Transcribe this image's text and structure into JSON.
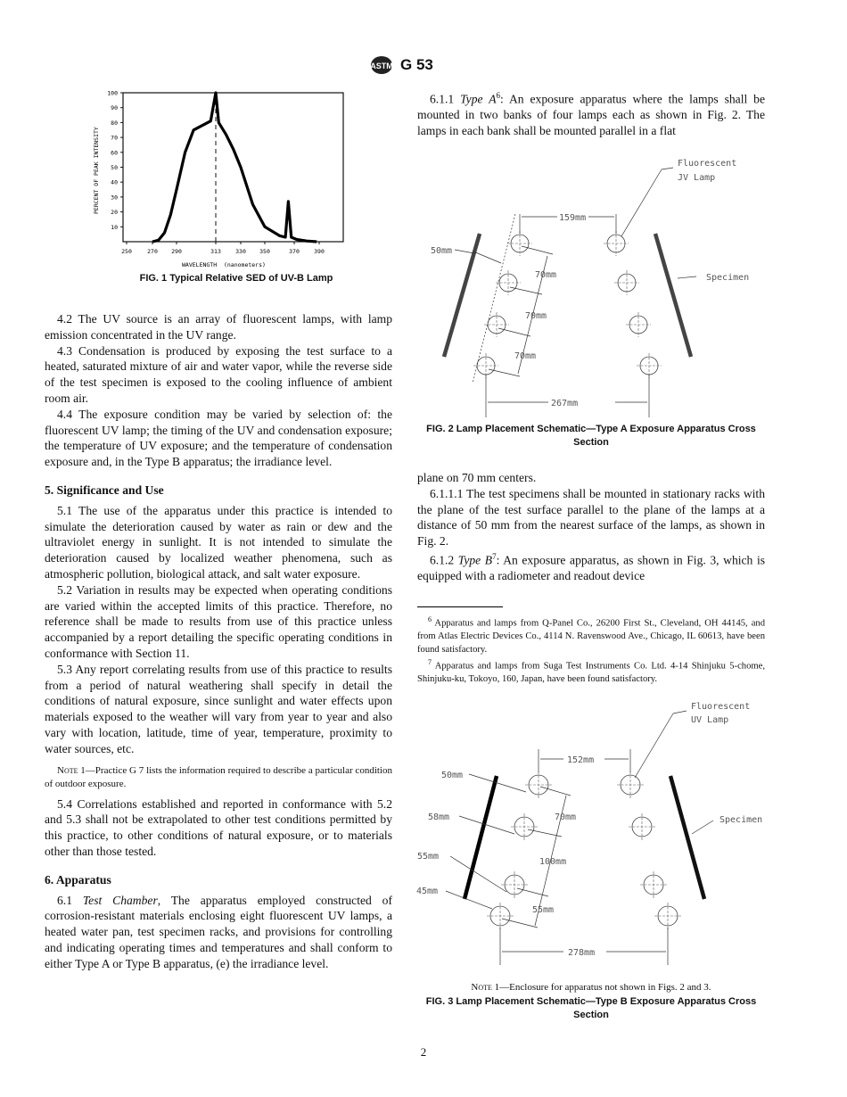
{
  "header": {
    "logo_text": "ASTM",
    "designation": "G 53"
  },
  "page_number": "2",
  "left": {
    "p42": "4.2 The UV source is an array of fluorescent lamps, with lamp emission concentrated in the UV range.",
    "p43": "4.3 Condensation is produced by exposing the test surface to a heated, saturated mixture of air and water vapor, while the reverse side of the test specimen is exposed to the cooling influence of ambient room air.",
    "p44": "4.4 The exposure condition may be varied by selection of: the fluorescent UV lamp; the timing of the UV and condensation exposure; the temperature of UV exposure; and the temperature of condensation exposure and, in the Type B apparatus; the irradiance level.",
    "h5": "5. Significance and Use",
    "p51": "5.1 The use of the apparatus under this practice is intended to simulate the deterioration caused by water as rain or dew and the ultraviolet energy in sunlight. It is not intended to simulate the deterioration caused by localized weather phenomena, such as atmospheric pollution, biological attack, and salt water exposure.",
    "p52": "5.2 Variation in results may be expected when operating conditions are varied within the accepted limits of this practice. Therefore, no reference shall be made to results from use of this practice unless accompanied by a report detailing the specific operating conditions in conformance with Section 11.",
    "p53": "5.3 Any report correlating results from use of this practice to results from a period of natural weathering shall specify in detail the conditions of natural exposure, since sunlight and water effects upon materials exposed to the weather will vary from year to year and also vary with location, latitude, time of year, temperature, proximity to water sources, etc.",
    "note1_label": "Note",
    "note1_text": " 1—Practice G 7 lists the information required to describe a particular condition of outdoor exposure.",
    "p54": "5.4 Correlations established and reported in conformance with 5.2 and 5.3 shall not be extrapolated to other test conditions permitted by this practice, to other conditions of natural exposure, or to materials other than those tested.",
    "h6": "6. Apparatus",
    "p61_num": "6.1 ",
    "p61_title": "Test Chamber",
    "p61_text": ", The apparatus employed constructed of corrosion-resistant materials enclosing eight fluorescent UV lamps, a heated water pan, test specimen racks, and provisions for controlling and indicating operating times and temperatures and shall conform to either Type A or Type B apparatus, (e) the irradiance level."
  },
  "right": {
    "p611_num": "6.1.1 ",
    "p611_title": "Type A",
    "p611_sup": "6",
    "p611_text": ": An exposure apparatus where the lamps shall be mounted in two banks of four lamps each as shown in Fig. 2. The lamps in each bank shall be mounted parallel in a flat",
    "p611_cont": "plane on 70 mm centers.",
    "p6111": "6.1.1.1 The test specimens shall be mounted in stationary racks with the plane of the test surface parallel to the plane of the lamps at a distance of 50 mm from the nearest surface of the lamps, as shown in Fig. 2.",
    "p612_num": "6.1.2 ",
    "p612_title": "Type B",
    "p612_sup": "7",
    "p612_text": ": An exposure apparatus, as shown in Fig. 3, which is equipped with a radiometer and readout device",
    "fn6_sup": "6",
    "fn6": " Apparatus and lamps from Q-Panel Co., 26200 First St., Cleveland, OH 44145, and from Atlas Electric Devices Co., 4114 N. Ravenswood Ave., Chicago, IL 60613, have been found satisfactory.",
    "fn7_sup": "7",
    "fn7": " Apparatus and lamps from Suga Test Instruments Co. Ltd. 4-14 Shinjuku 5-chome, Shinjuku-ku, Tokoyo, 160, Japan, have been found satisfactory."
  },
  "fig1": {
    "caption": "FIG. 1 Typical Relative SED of UV-B Lamp",
    "chart_data": {
      "type": "line",
      "xlabel": "WAVELENGTH  (nanometers)",
      "ylabel": "PERCENT OF PEAK INTENSITY",
      "x_ticks": [
        250,
        270,
        290,
        313,
        330,
        350,
        370,
        390
      ],
      "y_ticks": [
        10,
        20,
        30,
        40,
        50,
        60,
        70,
        80,
        90,
        100
      ],
      "ylim": [
        0,
        100
      ],
      "grid": false,
      "reference_line_x": 313,
      "series": [
        {
          "x": [
            270,
            275,
            280,
            285,
            290,
            295,
            300,
            310,
            313,
            315,
            320,
            325,
            330,
            340,
            350,
            360,
            364,
            366,
            368,
            372,
            380,
            388
          ],
          "y": [
            0,
            1,
            6,
            18,
            35,
            60,
            75,
            81,
            100,
            80,
            72,
            62,
            50,
            25,
            10,
            4,
            3,
            27,
            3,
            1.5,
            0.5,
            0
          ]
        }
      ]
    }
  },
  "fig2": {
    "caption": "FIG. 2 Lamp Placement Schematic—Type A Exposure Apparatus Cross Section",
    "labels": {
      "lamp1": "Fluorescent",
      "lamp2": "JV Lamp",
      "spacing": "159mm",
      "dist": "50mm",
      "c1": "70mm",
      "c2": "70mm",
      "c3": "70mm",
      "specimen": "Specimen",
      "width": "267mm"
    }
  },
  "fig3": {
    "note_label": "Note",
    "note_text": " 1—Enclosure for apparatus not shown in Figs. 2 and 3.",
    "caption": "FIG. 3 Lamp Placement Schematic—Type B Exposure Apparatus Cross Section",
    "labels": {
      "lamp1": "Fluorescent",
      "lamp2": "UV Lamp",
      "spacing": "152mm",
      "d1": "50mm",
      "d2": "58mm",
      "d3": "55mm",
      "d4": "45mm",
      "c1": "70mm",
      "c2": "100mm",
      "c3": "55mm",
      "specimen": "Specimen",
      "width": "278mm"
    }
  }
}
